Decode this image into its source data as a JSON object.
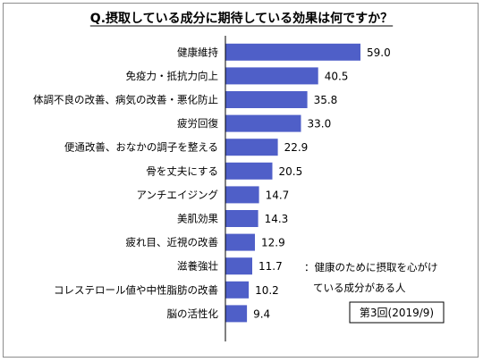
{
  "chart_data": {
    "type": "bar",
    "orientation": "horizontal",
    "title": "Q.摂取している成分に期待している効果は何ですか？",
    "categories": [
      "健康維持",
      "免疫力・抵抗力向上",
      "体調不良の改善、病気の改善・悪化防止",
      "疲労回復",
      "便通改善、おなかの調子を整える",
      "骨を丈夫にする",
      "アンチエイジング",
      "美肌効果",
      "疲れ目、近視の改善",
      "滋養強壮",
      "コレステロール値や中性脂肪の改善",
      "脳の活性化"
    ],
    "values": [
      59.0,
      40.5,
      35.8,
      33.0,
      22.9,
      20.5,
      14.7,
      14.3,
      12.9,
      11.7,
      10.2,
      9.4
    ],
    "value_labels": [
      "59.0",
      "40.5",
      "35.8",
      "33.0",
      "22.9",
      "20.5",
      "14.7",
      "14.3",
      "12.9",
      "11.7",
      "10.2",
      "9.4"
    ],
    "xlim": [
      0,
      70
    ],
    "grid": false,
    "bar_color": "#4f5fc8",
    "note": {
      "line1": "：健康のために摂取を心がけ",
      "line2": "ている成分がある人"
    },
    "badge": "第3回(2019/9)"
  }
}
